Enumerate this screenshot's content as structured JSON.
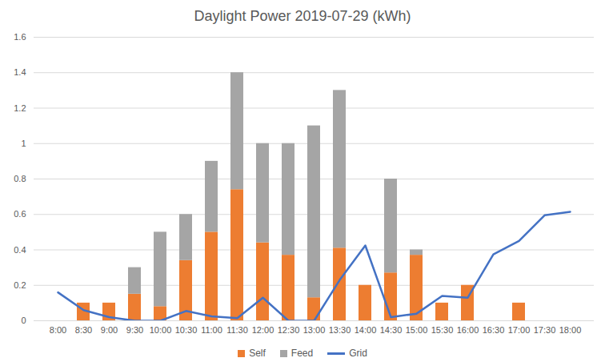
{
  "chart_data": {
    "type": "bar",
    "title": "Daylight Power 2019-07-29 (kWh)",
    "categories": [
      "8:00",
      "8:30",
      "9:00",
      "9:30",
      "10:00",
      "10:30",
      "11:00",
      "11:30",
      "12:00",
      "12:30",
      "13:00",
      "13:30",
      "14:00",
      "14:30",
      "15:00",
      "15:30",
      "16:00",
      "16:30",
      "17:00",
      "17:30",
      "18:00"
    ],
    "series": [
      {
        "name": "Self",
        "type": "bar",
        "color": "#ed7d31",
        "values": [
          0,
          0.1,
          0.1,
          0.15,
          0.08,
          0.34,
          0.5,
          0.74,
          0.44,
          0.37,
          0.13,
          0.41,
          0.2,
          0.27,
          0.37,
          0.1,
          0.2,
          0,
          0.1,
          0,
          0
        ]
      },
      {
        "name": "Feed",
        "type": "bar",
        "color": "#a5a5a5",
        "values": [
          0,
          0,
          0,
          0.15,
          0.42,
          0.26,
          0.4,
          0.66,
          0.56,
          0.63,
          0.97,
          0.89,
          0,
          0.53,
          0.03,
          0,
          0,
          0,
          0,
          0,
          0
        ]
      },
      {
        "name": "Grid",
        "type": "line",
        "color": "#4472c4",
        "values": [
          0.16,
          0.06,
          0.02,
          0,
          0,
          0.055,
          0.025,
          0.015,
          0.13,
          0,
          0,
          0.23,
          0.425,
          0.02,
          0.04,
          0.14,
          0.13,
          0.375,
          0.45,
          0.595,
          0.615
        ]
      }
    ],
    "stacked": true,
    "ylim": [
      0,
      1.6
    ],
    "yticks": [
      0,
      0.2,
      0.4,
      0.6,
      0.8,
      1,
      1.2,
      1.4,
      1.6
    ],
    "grid": true,
    "legend": "bottom"
  }
}
